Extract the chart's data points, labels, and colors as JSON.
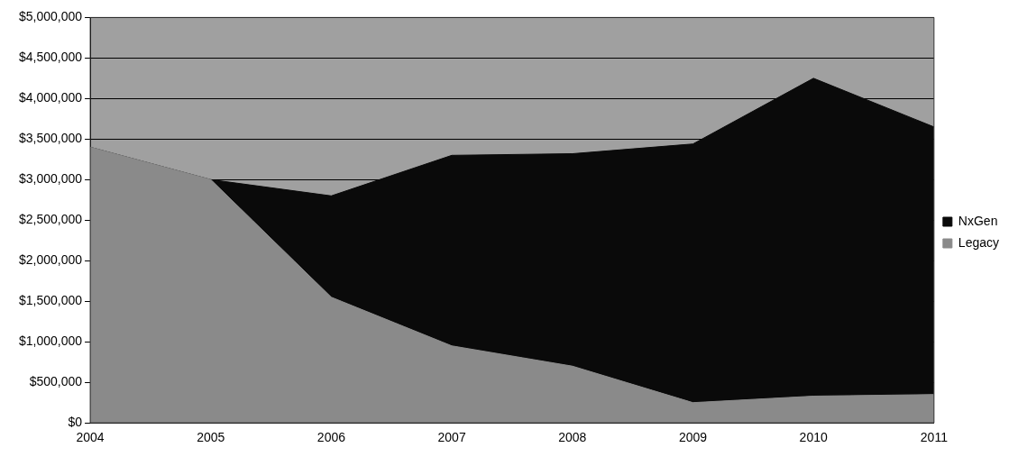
{
  "chart_data": {
    "type": "area",
    "stacked": true,
    "categories": [
      "2004",
      "2005",
      "2006",
      "2007",
      "2008",
      "2009",
      "2010",
      "2011"
    ],
    "series": [
      {
        "name": "Legacy",
        "color": "#8a8a8a",
        "values": [
          3400000,
          3000000,
          1550000,
          950000,
          700000,
          250000,
          330000,
          350000
        ]
      },
      {
        "name": "NxGen",
        "color": "#0a0a0a",
        "values": [
          0,
          0,
          1250000,
          2350000,
          2620000,
          3190000,
          3920000,
          3300000
        ]
      }
    ],
    "ylim": [
      0,
      5000000
    ],
    "yticks": [
      {
        "value": 0,
        "label": "$0"
      },
      {
        "value": 500000,
        "label": "$500,000"
      },
      {
        "value": 1000000,
        "label": "$1,000,000"
      },
      {
        "value": 1500000,
        "label": "$1,500,000"
      },
      {
        "value": 2000000,
        "label": "$2,000,000"
      },
      {
        "value": 2500000,
        "label": "$2,500,000"
      },
      {
        "value": 3000000,
        "label": "$3,000,000"
      },
      {
        "value": 3500000,
        "label": "$3,500,000"
      },
      {
        "value": 4000000,
        "label": "$4,000,000"
      },
      {
        "value": 4500000,
        "label": "$4,500,000"
      },
      {
        "value": 5000000,
        "label": "$5,000,000"
      }
    ],
    "grid": "y",
    "legend": "right"
  }
}
